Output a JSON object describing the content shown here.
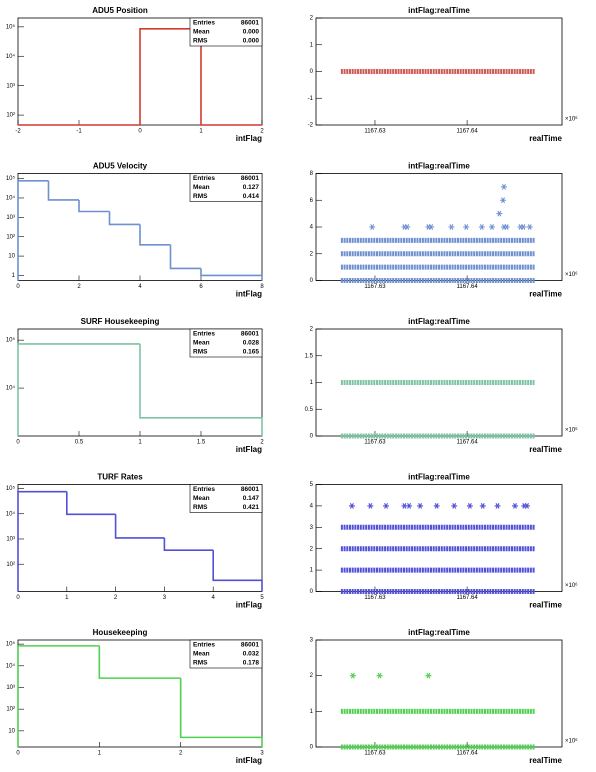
{
  "chart_data": [
    {
      "type": "histogram",
      "title": "ADU5 Position",
      "xlabel": "intFlag",
      "color": "#d23a30",
      "bins": [
        -2,
        0,
        1,
        2
      ],
      "values": [
        0,
        86001,
        0
      ],
      "xlim": [
        -2,
        2
      ],
      "xticks": [
        -2,
        -1,
        0,
        1,
        2
      ],
      "ylim": [
        46,
        200000
      ],
      "log_y": true,
      "yticks": [
        {
          "value": 100,
          "label": "10²"
        },
        {
          "value": 1000,
          "label": "10³"
        },
        {
          "value": 10000,
          "label": "10⁴"
        },
        {
          "value": 100000,
          "label": "10⁵"
        }
      ],
      "stats": {
        "labels": [
          "Entries",
          "Mean",
          "RMS"
        ],
        "values": [
          "86001",
          "0.000",
          "0.000"
        ]
      }
    },
    {
      "type": "scatter",
      "title": "intFlag:realTime",
      "xlabel": "realTime",
      "color": "#cf5a55",
      "xlim": [
        1167.6236,
        1167.6503
      ],
      "xticks": [
        1167.63,
        1167.64
      ],
      "x_exponent": "×10⁶",
      "ylim": [
        -2,
        2
      ],
      "yticks": [
        -2,
        -1,
        0,
        1,
        2
      ],
      "band_x": [
        1167.6263,
        1167.6474
      ],
      "band_y": [
        0
      ],
      "x": [],
      "y": []
    },
    {
      "type": "histogram",
      "title": "ADU5 Velocity",
      "xlabel": "intFlag",
      "color": "#6e8fd0",
      "bins": [
        0,
        1,
        2,
        3,
        4,
        5,
        6,
        7,
        8
      ],
      "values": [
        77000,
        7900,
        2000,
        430,
        38,
        2.3,
        1,
        1
      ],
      "xlim": [
        0,
        8
      ],
      "xticks": [
        0,
        2,
        4,
        6,
        8
      ],
      "ylim": [
        0.55,
        183000
      ],
      "log_y": true,
      "yticks": [
        1,
        10,
        {
          "value": 100,
          "label": "10²"
        },
        {
          "value": 1000,
          "label": "10³"
        },
        {
          "value": 10000,
          "label": "10⁴"
        },
        {
          "value": 100000,
          "label": "10⁵"
        }
      ],
      "stats": {
        "labels": [
          "Entries",
          "Mean",
          "RMS"
        ],
        "values": [
          "86001",
          "0.127",
          "0.414"
        ]
      }
    },
    {
      "type": "scatter",
      "title": "intFlag:realTime",
      "xlabel": "realTime",
      "color": "#6e8fd0",
      "xlim": [
        1167.6236,
        1167.6503
      ],
      "xticks": [
        1167.63,
        1167.64
      ],
      "x_exponent": "×10⁶",
      "ylim": [
        0,
        8
      ],
      "yticks": [
        0,
        2,
        4,
        6,
        8
      ],
      "band_x": [
        1167.6263,
        1167.6474
      ],
      "band_y": [
        0,
        1,
        2,
        3
      ],
      "x": [
        1167.6297,
        1167.6332,
        1167.6335,
        1167.6358,
        1167.6361,
        1167.6383,
        1167.6399,
        1167.6416,
        1167.6427,
        1167.644,
        1167.6443,
        1167.6458,
        1167.6461,
        1167.6468,
        1167.6435,
        1167.6439,
        1167.644
      ],
      "y": [
        4,
        4,
        4,
        4,
        4,
        4,
        4,
        4,
        4,
        4,
        4,
        4,
        4,
        4,
        5,
        6,
        7
      ]
    },
    {
      "type": "histogram",
      "title": "SURF Housekeeping",
      "xlabel": "intFlag",
      "color": "#7cc4a4",
      "bins": [
        0,
        1,
        2
      ],
      "values": [
        83600,
        2400
      ],
      "xlim": [
        0,
        2
      ],
      "xticks": [
        0,
        0.5,
        1,
        1.5,
        2
      ],
      "ylim": [
        1000,
        171000
      ],
      "log_y": true,
      "yticks": [
        {
          "value": 10000,
          "label": "10⁴"
        },
        {
          "value": 100000,
          "label": "10⁵"
        }
      ],
      "stats": {
        "labels": [
          "Entries",
          "Mean",
          "RMS"
        ],
        "values": [
          "86001",
          "0.028",
          "0.165"
        ]
      }
    },
    {
      "type": "scatter",
      "title": "intFlag:realTime",
      "xlabel": "realTime",
      "color": "#7cc4a4",
      "xlim": [
        1167.6236,
        1167.6503
      ],
      "xticks": [
        1167.63,
        1167.64
      ],
      "x_exponent": "×10⁶",
      "ylim": [
        0,
        2
      ],
      "yticks": [
        0,
        0.5,
        1,
        1.5,
        2
      ],
      "band_x": [
        1167.6263,
        1167.6474
      ],
      "band_y": [
        0,
        1
      ],
      "x": [],
      "y": []
    },
    {
      "type": "histogram",
      "title": "TURF Rates",
      "xlabel": "intFlag",
      "color": "#5050d8",
      "bins": [
        0,
        1,
        2,
        3,
        4,
        5
      ],
      "values": [
        75000,
        9500,
        1100,
        360,
        23
      ],
      "xlim": [
        0,
        5
      ],
      "xticks": [
        0,
        1,
        2,
        3,
        4,
        5
      ],
      "ylim": [
        8.3,
        144000
      ],
      "log_y": true,
      "yticks": [
        {
          "value": 100,
          "label": "10²"
        },
        {
          "value": 1000,
          "label": "10³"
        },
        {
          "value": 10000,
          "label": "10⁴"
        },
        {
          "value": 100000,
          "label": "10⁵"
        }
      ],
      "stats": {
        "labels": [
          "Entries",
          "Mean",
          "RMS"
        ],
        "values": [
          "86001",
          "0.147",
          "0.421"
        ]
      }
    },
    {
      "type": "scatter",
      "title": "intFlag:realTime",
      "xlabel": "realTime",
      "color": "#5050d8",
      "xlim": [
        1167.6236,
        1167.6503
      ],
      "xticks": [
        1167.63,
        1167.64
      ],
      "x_exponent": "×10⁶",
      "ylim": [
        0,
        5
      ],
      "yticks": [
        0,
        1,
        2,
        3,
        4,
        5
      ],
      "band_x": [
        1167.6263,
        1167.6474
      ],
      "band_y": [
        0,
        1,
        2,
        3
      ],
      "x": [
        1167.6275,
        1167.6295,
        1167.6312,
        1167.6332,
        1167.6337,
        1167.6349,
        1167.6367,
        1167.6386,
        1167.6403,
        1167.6417,
        1167.6433,
        1167.6452,
        1167.6462,
        1167.6465
      ],
      "y": [
        4,
        4,
        4,
        4,
        4,
        4,
        4,
        4,
        4,
        4,
        4,
        4,
        4,
        4
      ]
    },
    {
      "type": "histogram",
      "title": "Housekeeping",
      "xlabel": "intFlag",
      "color": "#4fd04f",
      "bins": [
        0,
        1,
        2,
        3
      ],
      "values": [
        83000,
        2700,
        5
      ],
      "xlim": [
        0,
        3
      ],
      "xticks": [
        0,
        1,
        2,
        3
      ],
      "ylim": [
        1.8,
        155000
      ],
      "log_y": true,
      "yticks": [
        10,
        {
          "value": 100,
          "label": "10²"
        },
        {
          "value": 1000,
          "label": "10³"
        },
        {
          "value": 10000,
          "label": "10⁴"
        },
        {
          "value": 100000,
          "label": "10⁵"
        }
      ],
      "stats": {
        "labels": [
          "Entries",
          "Mean",
          "RMS"
        ],
        "values": [
          "86001",
          "0.032",
          "0.178"
        ]
      }
    },
    {
      "type": "scatter",
      "title": "intFlag:realTime",
      "xlabel": "realTime",
      "color": "#4fd04f",
      "xlim": [
        1167.6236,
        1167.6503
      ],
      "xticks": [
        1167.63,
        1167.64
      ],
      "x_exponent": "×10⁶",
      "ylim": [
        0,
        3
      ],
      "yticks": [
        0,
        1,
        2,
        3
      ],
      "band_x": [
        1167.6263,
        1167.6474
      ],
      "band_y": [
        0,
        1
      ],
      "x": [
        1167.6276,
        1167.6305,
        1167.6358
      ],
      "y": [
        2,
        2,
        2
      ]
    }
  ]
}
